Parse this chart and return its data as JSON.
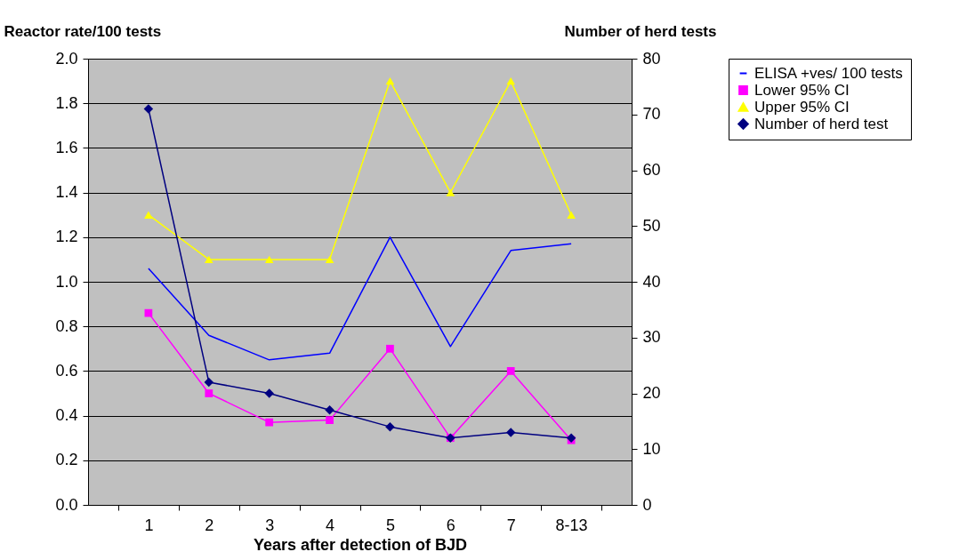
{
  "chart_data": {
    "type": "line",
    "xlabel": "Years after detection of BJD",
    "ylabel": "Reactor rate/100 tests",
    "y2label": "Number of herd tests",
    "categories": [
      "1",
      "2",
      "3",
      "4",
      "5",
      "6",
      "7",
      "8-13"
    ],
    "series": [
      {
        "name": "ELISA +ves/ 100 tests",
        "color": "#0000ff",
        "values": [
          1.06,
          0.76,
          0.65,
          0.68,
          1.2,
          0.71,
          1.14,
          1.17
        ]
      },
      {
        "name": "Lower 95% CI",
        "color": "#ff00ff",
        "marker": "square",
        "values": [
          0.86,
          0.5,
          0.37,
          0.38,
          0.7,
          0.3,
          0.6,
          0.29
        ]
      },
      {
        "name": "Upper 95% CI",
        "color": "#ffff00",
        "marker": "triangle",
        "values": [
          1.3,
          1.1,
          1.1,
          1.1,
          1.9,
          1.4,
          1.9,
          1.3
        ]
      },
      {
        "name": "Number of herd test",
        "color": "#000080",
        "marker": "diamond",
        "axis": "y2",
        "values": [
          71,
          22,
          20,
          17,
          14,
          12,
          13,
          12
        ]
      }
    ],
    "ylim": [
      0,
      2
    ],
    "yticks": [
      {
        "value": 0,
        "label": "0.0"
      },
      {
        "value": 0.2,
        "label": "0.2"
      },
      {
        "value": 0.4,
        "label": "0.4"
      },
      {
        "value": 0.6,
        "label": "0.6"
      },
      {
        "value": 0.8,
        "label": "0.8"
      },
      {
        "value": 1,
        "label": "1.0"
      },
      {
        "value": 1.2,
        "label": "1.2"
      },
      {
        "value": 1.4,
        "label": "1.4"
      },
      {
        "value": 1.6,
        "label": "1.6"
      },
      {
        "value": 1.8,
        "label": "1.8"
      },
      {
        "value": 2,
        "label": "2.0"
      }
    ],
    "y2lim": [
      0,
      80
    ],
    "y2ticks": [
      0,
      10,
      20,
      30,
      40,
      50,
      60,
      70,
      80
    ],
    "grid": "y",
    "legend": "right"
  }
}
